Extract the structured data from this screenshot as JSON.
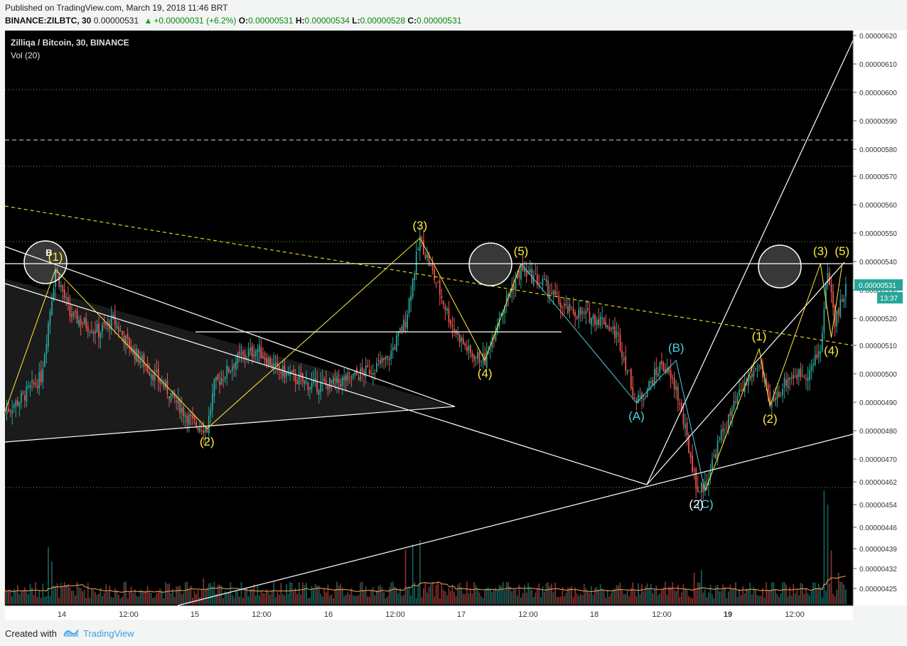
{
  "header": {
    "published": "Published on TradingView.com, March 19, 2018 11:46 BRT",
    "symbol": "BINANCE:ZILBTC, 30",
    "last": "0.00000531",
    "change": "+0.00000031 (+6.2%)",
    "o_label": "O:",
    "o_value": "0.00000531",
    "h_label": "H:",
    "h_value": "0.00000534",
    "l_label": "L:",
    "l_value": "0.00000528",
    "c_label": "C:",
    "c_value": "0.00000531"
  },
  "chart": {
    "title": "Zilliqa / Bitcoin, 30, BINANCE",
    "indicator": "Vol (20)",
    "price_label": "0.00000531",
    "countdown": "13:37",
    "accent": "#26a69a",
    "down_color": "#ef5350",
    "wave_color": "#ffeb3b",
    "corr_color": "#4dd0e1"
  },
  "footer": {
    "created": "Created with",
    "brand": "TradingView"
  },
  "chart_data": {
    "type": "candlestick",
    "title": "Zilliqa / Bitcoin, 30, BINANCE",
    "price_axis": {
      "ticks": [
        "0.00000620",
        "0.00000610",
        "0.00000600",
        "0.00000590",
        "0.00000580",
        "0.00000570",
        "0.00000560",
        "0.00000550",
        "0.00000540",
        "0.00000530",
        "0.00000520",
        "0.00000510",
        "0.00000500",
        "0.00000490",
        "0.00000480",
        "0.00000470",
        "0.00000462",
        "0.00000454",
        "0.00000446",
        "0.00000439",
        "0.00000432",
        "0.00000425"
      ]
    },
    "time_axis": {
      "ticks": [
        "14",
        "12:00",
        "15",
        "12:00",
        "16",
        "12:00",
        "17",
        "12:00",
        "18",
        "12:00",
        "19",
        "12:00"
      ]
    },
    "price_path": [
      {
        "t": 0,
        "p": 4.88
      },
      {
        "t": 8,
        "p": 4.92
      },
      {
        "t": 20,
        "p": 5.0
      },
      {
        "t": 28,
        "p": 5.38
      },
      {
        "t": 36,
        "p": 5.22
      },
      {
        "t": 52,
        "p": 5.16
      },
      {
        "t": 60,
        "p": 5.2
      },
      {
        "t": 70,
        "p": 5.1
      },
      {
        "t": 88,
        "p": 4.97
      },
      {
        "t": 104,
        "p": 4.84
      },
      {
        "t": 112,
        "p": 4.82
      },
      {
        "t": 116,
        "p": 4.97
      },
      {
        "t": 128,
        "p": 5.06
      },
      {
        "t": 140,
        "p": 5.1
      },
      {
        "t": 150,
        "p": 5.03
      },
      {
        "t": 170,
        "p": 4.97
      },
      {
        "t": 184,
        "p": 4.98
      },
      {
        "t": 200,
        "p": 5.02
      },
      {
        "t": 212,
        "p": 5.06
      },
      {
        "t": 222,
        "p": 5.2
      },
      {
        "t": 230,
        "p": 5.49
      },
      {
        "t": 238,
        "p": 5.35
      },
      {
        "t": 248,
        "p": 5.18
      },
      {
        "t": 258,
        "p": 5.08
      },
      {
        "t": 266,
        "p": 5.06
      },
      {
        "t": 274,
        "p": 5.22
      },
      {
        "t": 286,
        "p": 5.38
      },
      {
        "t": 300,
        "p": 5.32
      },
      {
        "t": 310,
        "p": 5.24
      },
      {
        "t": 320,
        "p": 5.22
      },
      {
        "t": 332,
        "p": 5.2
      },
      {
        "t": 340,
        "p": 5.14
      },
      {
        "t": 350,
        "p": 4.91
      },
      {
        "t": 358,
        "p": 4.98
      },
      {
        "t": 364,
        "p": 5.05
      },
      {
        "t": 372,
        "p": 4.96
      },
      {
        "t": 384,
        "p": 4.6
      },
      {
        "t": 388,
        "p": 4.62
      },
      {
        "t": 396,
        "p": 4.78
      },
      {
        "t": 408,
        "p": 4.95
      },
      {
        "t": 418,
        "p": 5.05
      },
      {
        "t": 424,
        "p": 4.9
      },
      {
        "t": 434,
        "p": 5.0
      },
      {
        "t": 446,
        "p": 5.02
      },
      {
        "t": 452,
        "p": 5.1
      },
      {
        "t": 456,
        "p": 5.38
      },
      {
        "t": 460,
        "p": 5.2
      },
      {
        "t": 466,
        "p": 5.31
      }
    ],
    "volume": {
      "spikes": [
        {
          "t": 24,
          "v": 40
        },
        {
          "t": 26,
          "v": 30
        },
        {
          "t": 110,
          "v": 18
        },
        {
          "t": 222,
          "v": 38
        },
        {
          "t": 226,
          "v": 42
        },
        {
          "t": 230,
          "v": 45
        },
        {
          "t": 382,
          "v": 22
        },
        {
          "t": 386,
          "v": 24
        },
        {
          "t": 454,
          "v": 80
        },
        {
          "t": 456,
          "v": 70
        },
        {
          "t": 458,
          "v": 38
        },
        {
          "t": 462,
          "v": 22
        }
      ]
    },
    "annotations": {
      "yellow_waves": [
        {
          "label": "(1)",
          "t": 28,
          "p": 5.38
        },
        {
          "label": "(2)",
          "t": 112,
          "p": 4.82
        },
        {
          "label": "(3)",
          "t": 230,
          "p": 5.49
        },
        {
          "label": "(4)",
          "t": 266,
          "p": 5.06
        },
        {
          "label": "(5)",
          "t": 286,
          "p": 5.4
        },
        {
          "label": "(1)",
          "t": 418,
          "p": 5.1
        },
        {
          "label": "(2)",
          "t": 424,
          "p": 4.9
        },
        {
          "label": "(3)",
          "t": 452,
          "p": 5.4
        },
        {
          "label": "(4)",
          "t": 458,
          "p": 5.14
        },
        {
          "label": "(5)",
          "t": 464,
          "p": 5.4
        }
      ],
      "cyan_waves": [
        {
          "label": "(A)",
          "t": 350,
          "p": 4.91
        },
        {
          "label": "(B)",
          "t": 372,
          "p": 5.06
        },
        {
          "label": "(C)",
          "t": 388,
          "p": 4.6
        }
      ],
      "white_labels": [
        {
          "label": "(2)",
          "t": 384,
          "p": 4.6
        }
      ],
      "circle_label": "B"
    }
  }
}
